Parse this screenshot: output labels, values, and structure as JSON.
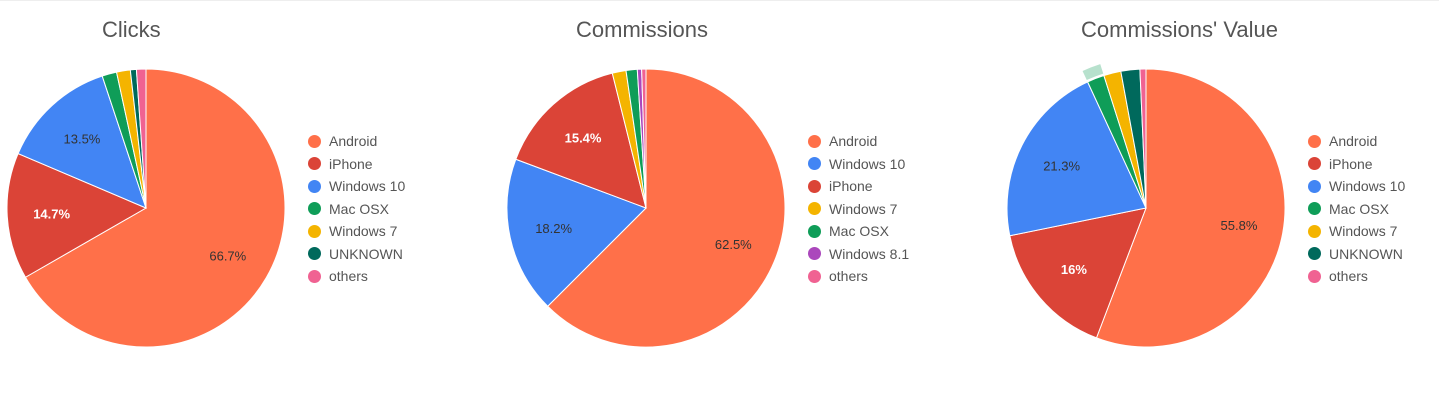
{
  "chart_data": [
    {
      "type": "pie",
      "title": "Clicks",
      "slices": [
        {
          "name": "Android",
          "value": 66.7,
          "color": "#FF7049",
          "label": "66.7%"
        },
        {
          "name": "iPhone",
          "value": 14.7,
          "color": "#DB4437",
          "label": "14.7%"
        },
        {
          "name": "Windows 10",
          "value": 13.5,
          "color": "#4285F4",
          "label": "13.5%"
        },
        {
          "name": "Mac OSX",
          "value": 1.7,
          "color": "#0F9D58",
          "label": ""
        },
        {
          "name": "Windows 7",
          "value": 1.6,
          "color": "#F4B400",
          "label": ""
        },
        {
          "name": "UNKNOWN",
          "value": 0.7,
          "color": "#00695C",
          "label": ""
        },
        {
          "name": "others",
          "value": 1.1,
          "color": "#F06292",
          "label": ""
        }
      ]
    },
    {
      "type": "pie",
      "title": "Commissions",
      "slices": [
        {
          "name": "Android",
          "value": 62.5,
          "color": "#FF7049",
          "label": "62.5%"
        },
        {
          "name": "Windows 10",
          "value": 18.2,
          "color": "#4285F4",
          "label": "18.2%"
        },
        {
          "name": "iPhone",
          "value": 15.4,
          "color": "#DB4437",
          "label": "15.4%"
        },
        {
          "name": "Windows 7",
          "value": 1.6,
          "color": "#F4B400",
          "label": ""
        },
        {
          "name": "Mac OSX",
          "value": 1.3,
          "color": "#0F9D58",
          "label": ""
        },
        {
          "name": "Windows 8.1",
          "value": 0.5,
          "color": "#AB47BC",
          "label": ""
        },
        {
          "name": "others",
          "value": 0.5,
          "color": "#F06292",
          "label": ""
        }
      ]
    },
    {
      "type": "pie",
      "title": "Commissions' Value",
      "slices": [
        {
          "name": "Android",
          "value": 55.8,
          "color": "#FF7049",
          "label": "55.8%"
        },
        {
          "name": "iPhone",
          "value": 16,
          "color": "#DB4437",
          "label": "16%"
        },
        {
          "name": "Windows 10",
          "value": 21.3,
          "color": "#4285F4",
          "label": "21.3%"
        },
        {
          "name": "Mac OSX",
          "value": 2.0,
          "color": "#0F9D58",
          "label": ""
        },
        {
          "name": "Windows 7",
          "value": 2.0,
          "color": "#F4B400",
          "label": ""
        },
        {
          "name": "UNKNOWN",
          "value": 2.2,
          "color": "#00695C",
          "label": ""
        },
        {
          "name": "others",
          "value": 0.7,
          "color": "#F06292",
          "label": ""
        }
      ],
      "highlighted_slice": "Mac OSX"
    }
  ]
}
